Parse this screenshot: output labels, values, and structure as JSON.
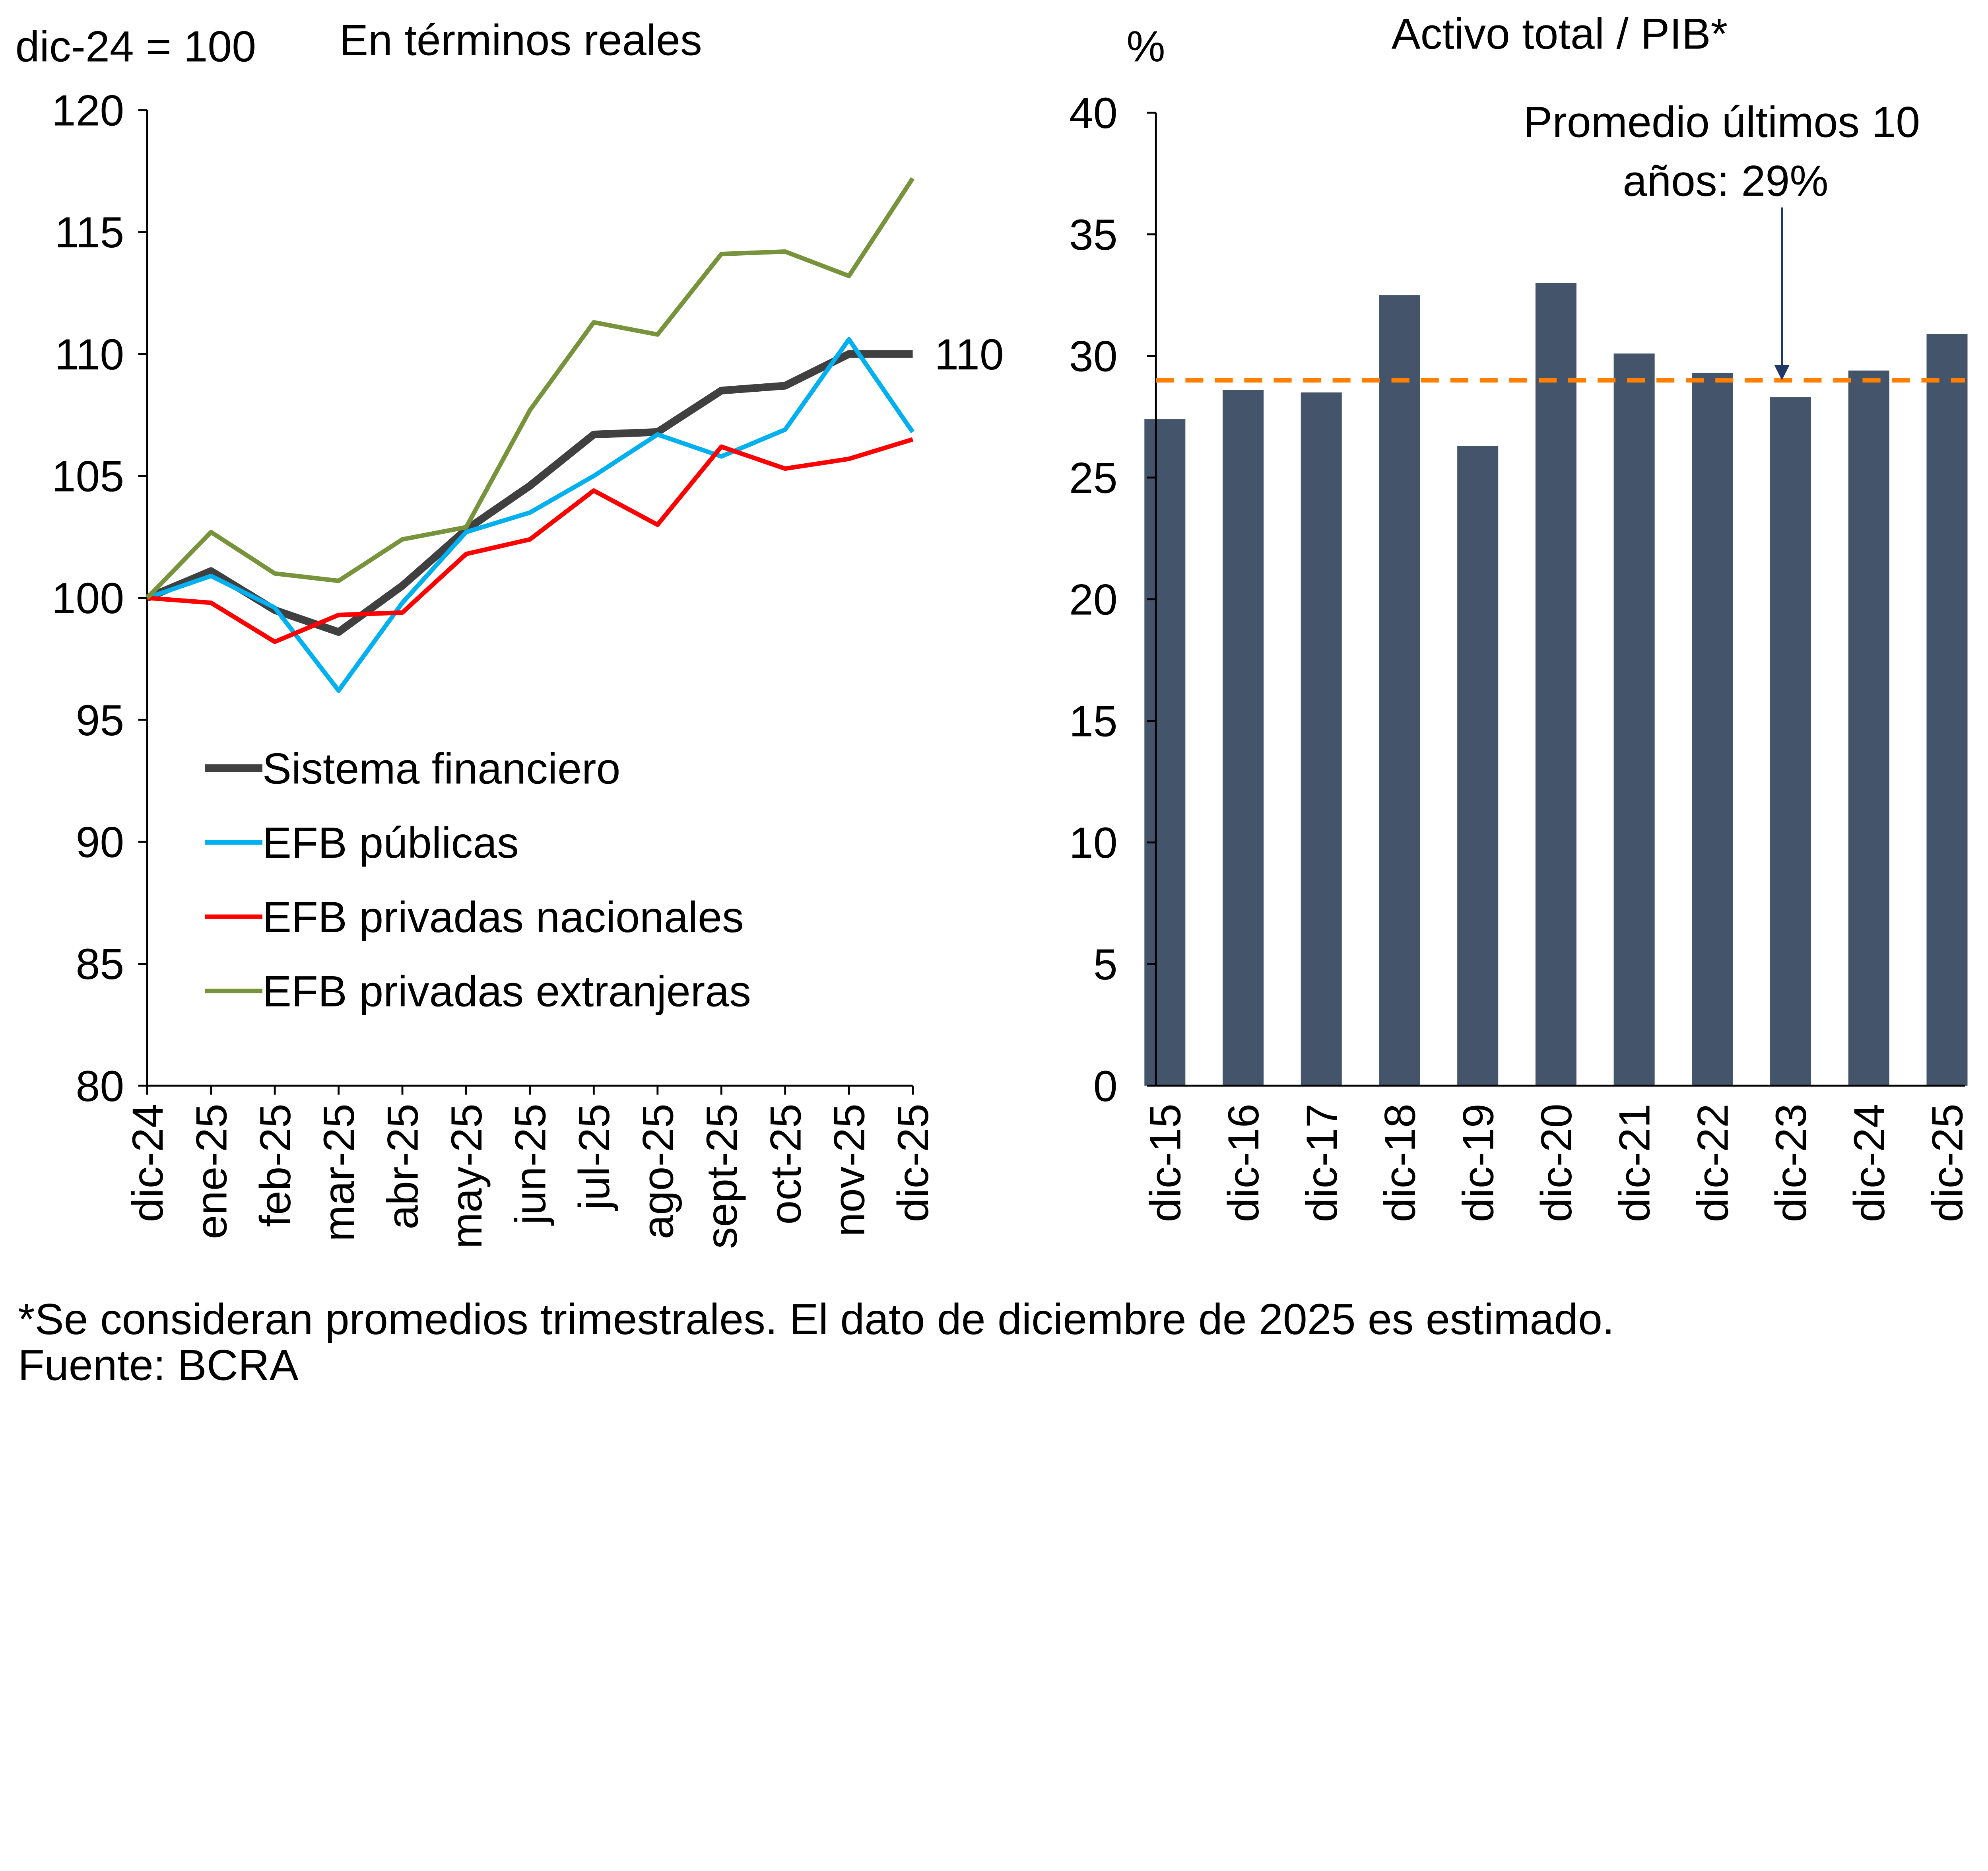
{
  "chart_data": [
    {
      "type": "line",
      "title": "En términos reales",
      "ylabel": "dic-24 = 100",
      "ylim": [
        80,
        120
      ],
      "yticks": [
        80,
        85,
        90,
        95,
        100,
        105,
        110,
        115,
        120
      ],
      "categories": [
        "dic-24",
        "ene-25",
        "feb-25",
        "mar-25",
        "abr-25",
        "may-25",
        "jun-25",
        "jul-25",
        "ago-25",
        "sept-25",
        "oct-25",
        "nov-25",
        "dic-25"
      ],
      "series": [
        {
          "name": "Sistema financiero",
          "color": "#404040",
          "values": [
            100,
            101.1,
            99.5,
            98.6,
            100.5,
            102.8,
            104.6,
            106.7,
            106.8,
            108.5,
            108.7,
            110,
            110
          ]
        },
        {
          "name": "EFB públicas",
          "color": "#00b0f0",
          "values": [
            100,
            100.9,
            99.6,
            96.2,
            99.8,
            102.7,
            103.5,
            105,
            106.7,
            105.8,
            106.9,
            110.6,
            106.8
          ]
        },
        {
          "name": "EFB privadas nacionales",
          "color": "#ff0000",
          "values": [
            100,
            99.8,
            98.2,
            99.3,
            99.4,
            101.8,
            102.4,
            104.4,
            103,
            106.2,
            105.3,
            105.7,
            106.5
          ]
        },
        {
          "name": "EFB privadas extranjeras",
          "color": "#77933c",
          "values": [
            100,
            102.7,
            101,
            100.7,
            102.4,
            102.9,
            107.7,
            111.3,
            110.8,
            114.1,
            114.2,
            113.2,
            117.2
          ]
        }
      ],
      "end_label": "110",
      "legend": "bottom-left"
    },
    {
      "type": "bar",
      "title": "Activo total / PIB*",
      "ylabel": "%",
      "ylim": [
        0,
        40
      ],
      "yticks": [
        0,
        5,
        10,
        15,
        20,
        25,
        30,
        35,
        40
      ],
      "categories": [
        "dic-15",
        "dic-16",
        "dic-17",
        "dic-18",
        "dic-19",
        "dic-20",
        "dic-21",
        "dic-22",
        "dic-23",
        "dic-24",
        "dic-25"
      ],
      "values": [
        27.4,
        28.6,
        28.5,
        32.5,
        26.3,
        33,
        30.1,
        29.3,
        28.3,
        29.4,
        30.9
      ],
      "bar_color": "#44546a",
      "average": {
        "value": 29,
        "color": "#ff8000",
        "annotation": [
          "Promedio últimos 10",
          "años: 29%"
        ]
      }
    }
  ],
  "footnote": "*Se consideran promedios trimestrales. El dato de diciembre de 2025 es estimado.",
  "source": "Fuente: BCRA"
}
